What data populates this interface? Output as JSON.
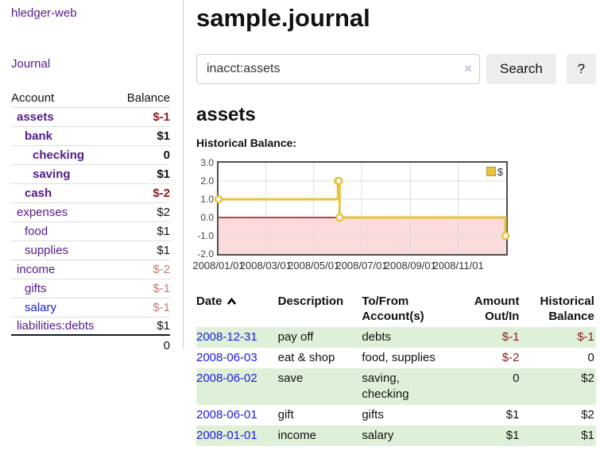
{
  "app": {
    "title": "hledger-web",
    "nav_journal": "Journal"
  },
  "sidebar": {
    "header": {
      "account": "Account",
      "balance": "Balance"
    },
    "accounts": [
      {
        "name": "assets",
        "level": 1,
        "bold": true,
        "balance": "$-1",
        "bal_style": "neg"
      },
      {
        "name": "bank",
        "level": 2,
        "bold": true,
        "balance": "$1",
        "bal_style": "pos"
      },
      {
        "name": "checking",
        "level": 3,
        "bold": true,
        "balance": "0",
        "bal_style": "pos"
      },
      {
        "name": "saving",
        "level": 3,
        "bold": true,
        "balance": "$1",
        "bal_style": "pos"
      },
      {
        "name": "cash",
        "level": 2,
        "bold": true,
        "balance": "$-2",
        "bal_style": "neg"
      },
      {
        "name": "expenses",
        "level": 1,
        "bold": false,
        "balance": "$2",
        "bal_style": "pos"
      },
      {
        "name": "food",
        "level": 2,
        "bold": false,
        "balance": "$1",
        "bal_style": "pos"
      },
      {
        "name": "supplies",
        "level": 2,
        "bold": false,
        "balance": "$1",
        "bal_style": "pos"
      },
      {
        "name": "income",
        "level": 1,
        "bold": false,
        "balance": "$-2",
        "bal_style": "neglight"
      },
      {
        "name": "gifts",
        "level": 2,
        "bold": false,
        "balance": "$-1",
        "bal_style": "neglight"
      },
      {
        "name": "salary",
        "level": 2,
        "bold": false,
        "balance": "$-1",
        "bal_style": "neglight",
        "link_style": "unvisited"
      },
      {
        "name": "liabilities:debts",
        "level": 1,
        "bold": false,
        "balance": "$1",
        "bal_style": "pos",
        "last": true
      }
    ],
    "total": "0"
  },
  "header": {
    "title": "sample.journal"
  },
  "search": {
    "query": "inacct:assets",
    "clear_icon": "×",
    "search_label": "Search",
    "help_label": "?"
  },
  "account_page": {
    "title": "assets",
    "chart_label": "Historical Balance:"
  },
  "chart_data": {
    "type": "line",
    "step": true,
    "series": [
      {
        "name": "$",
        "color": "#e8c240",
        "points": [
          [
            "2008-01-01",
            1
          ],
          [
            "2008-06-01",
            2
          ],
          [
            "2008-06-02",
            2
          ],
          [
            "2008-06-03",
            0
          ],
          [
            "2008-12-31",
            -1
          ]
        ]
      }
    ],
    "ylim": [
      -2,
      3
    ],
    "yticks": [
      "3.0",
      "2.0",
      "1.0",
      "0.0",
      "-1.0",
      "-2.0"
    ],
    "xticks": [
      "2008/01/01",
      "2008/03/01",
      "2008/05/01",
      "2008/07/01",
      "2008/09/01",
      "2008/11/01"
    ],
    "xrange": [
      "2008-01-01",
      "2009-01-01"
    ],
    "grid": true,
    "legend_position": "top-right",
    "colors": {
      "line": "#e8c240",
      "marker_fill": "#ffffff",
      "negative_fill": "#fbdbdb",
      "zero_line": "#991111",
      "gridline": "#dcdcdc",
      "border": "#4f4f4f"
    }
  },
  "register": {
    "columns": [
      "Date",
      "Description",
      "To/From Account(s)",
      "Amount Out/In",
      "Historical Balance"
    ],
    "rows": [
      {
        "date": "2008-12-31",
        "description": "pay off",
        "accounts": "debts",
        "amount": "$-1",
        "amount_neg": true,
        "balance": "$-1",
        "balance_neg": true
      },
      {
        "date": "2008-06-03",
        "description": "eat & shop",
        "accounts": "food, supplies",
        "amount": "$-2",
        "amount_neg": true,
        "balance": "0",
        "balance_neg": false
      },
      {
        "date": "2008-06-02",
        "description": "save",
        "accounts": "saving,\nchecking",
        "amount": "0",
        "amount_neg": false,
        "balance": "$2",
        "balance_neg": false
      },
      {
        "date": "2008-06-01",
        "description": "gift",
        "accounts": "gifts",
        "amount": "$1",
        "amount_neg": false,
        "balance": "$2",
        "balance_neg": false
      },
      {
        "date": "2008-01-01",
        "description": "income",
        "accounts": "salary",
        "amount": "$1",
        "amount_neg": false,
        "balance": "$1",
        "balance_neg": false
      }
    ]
  }
}
